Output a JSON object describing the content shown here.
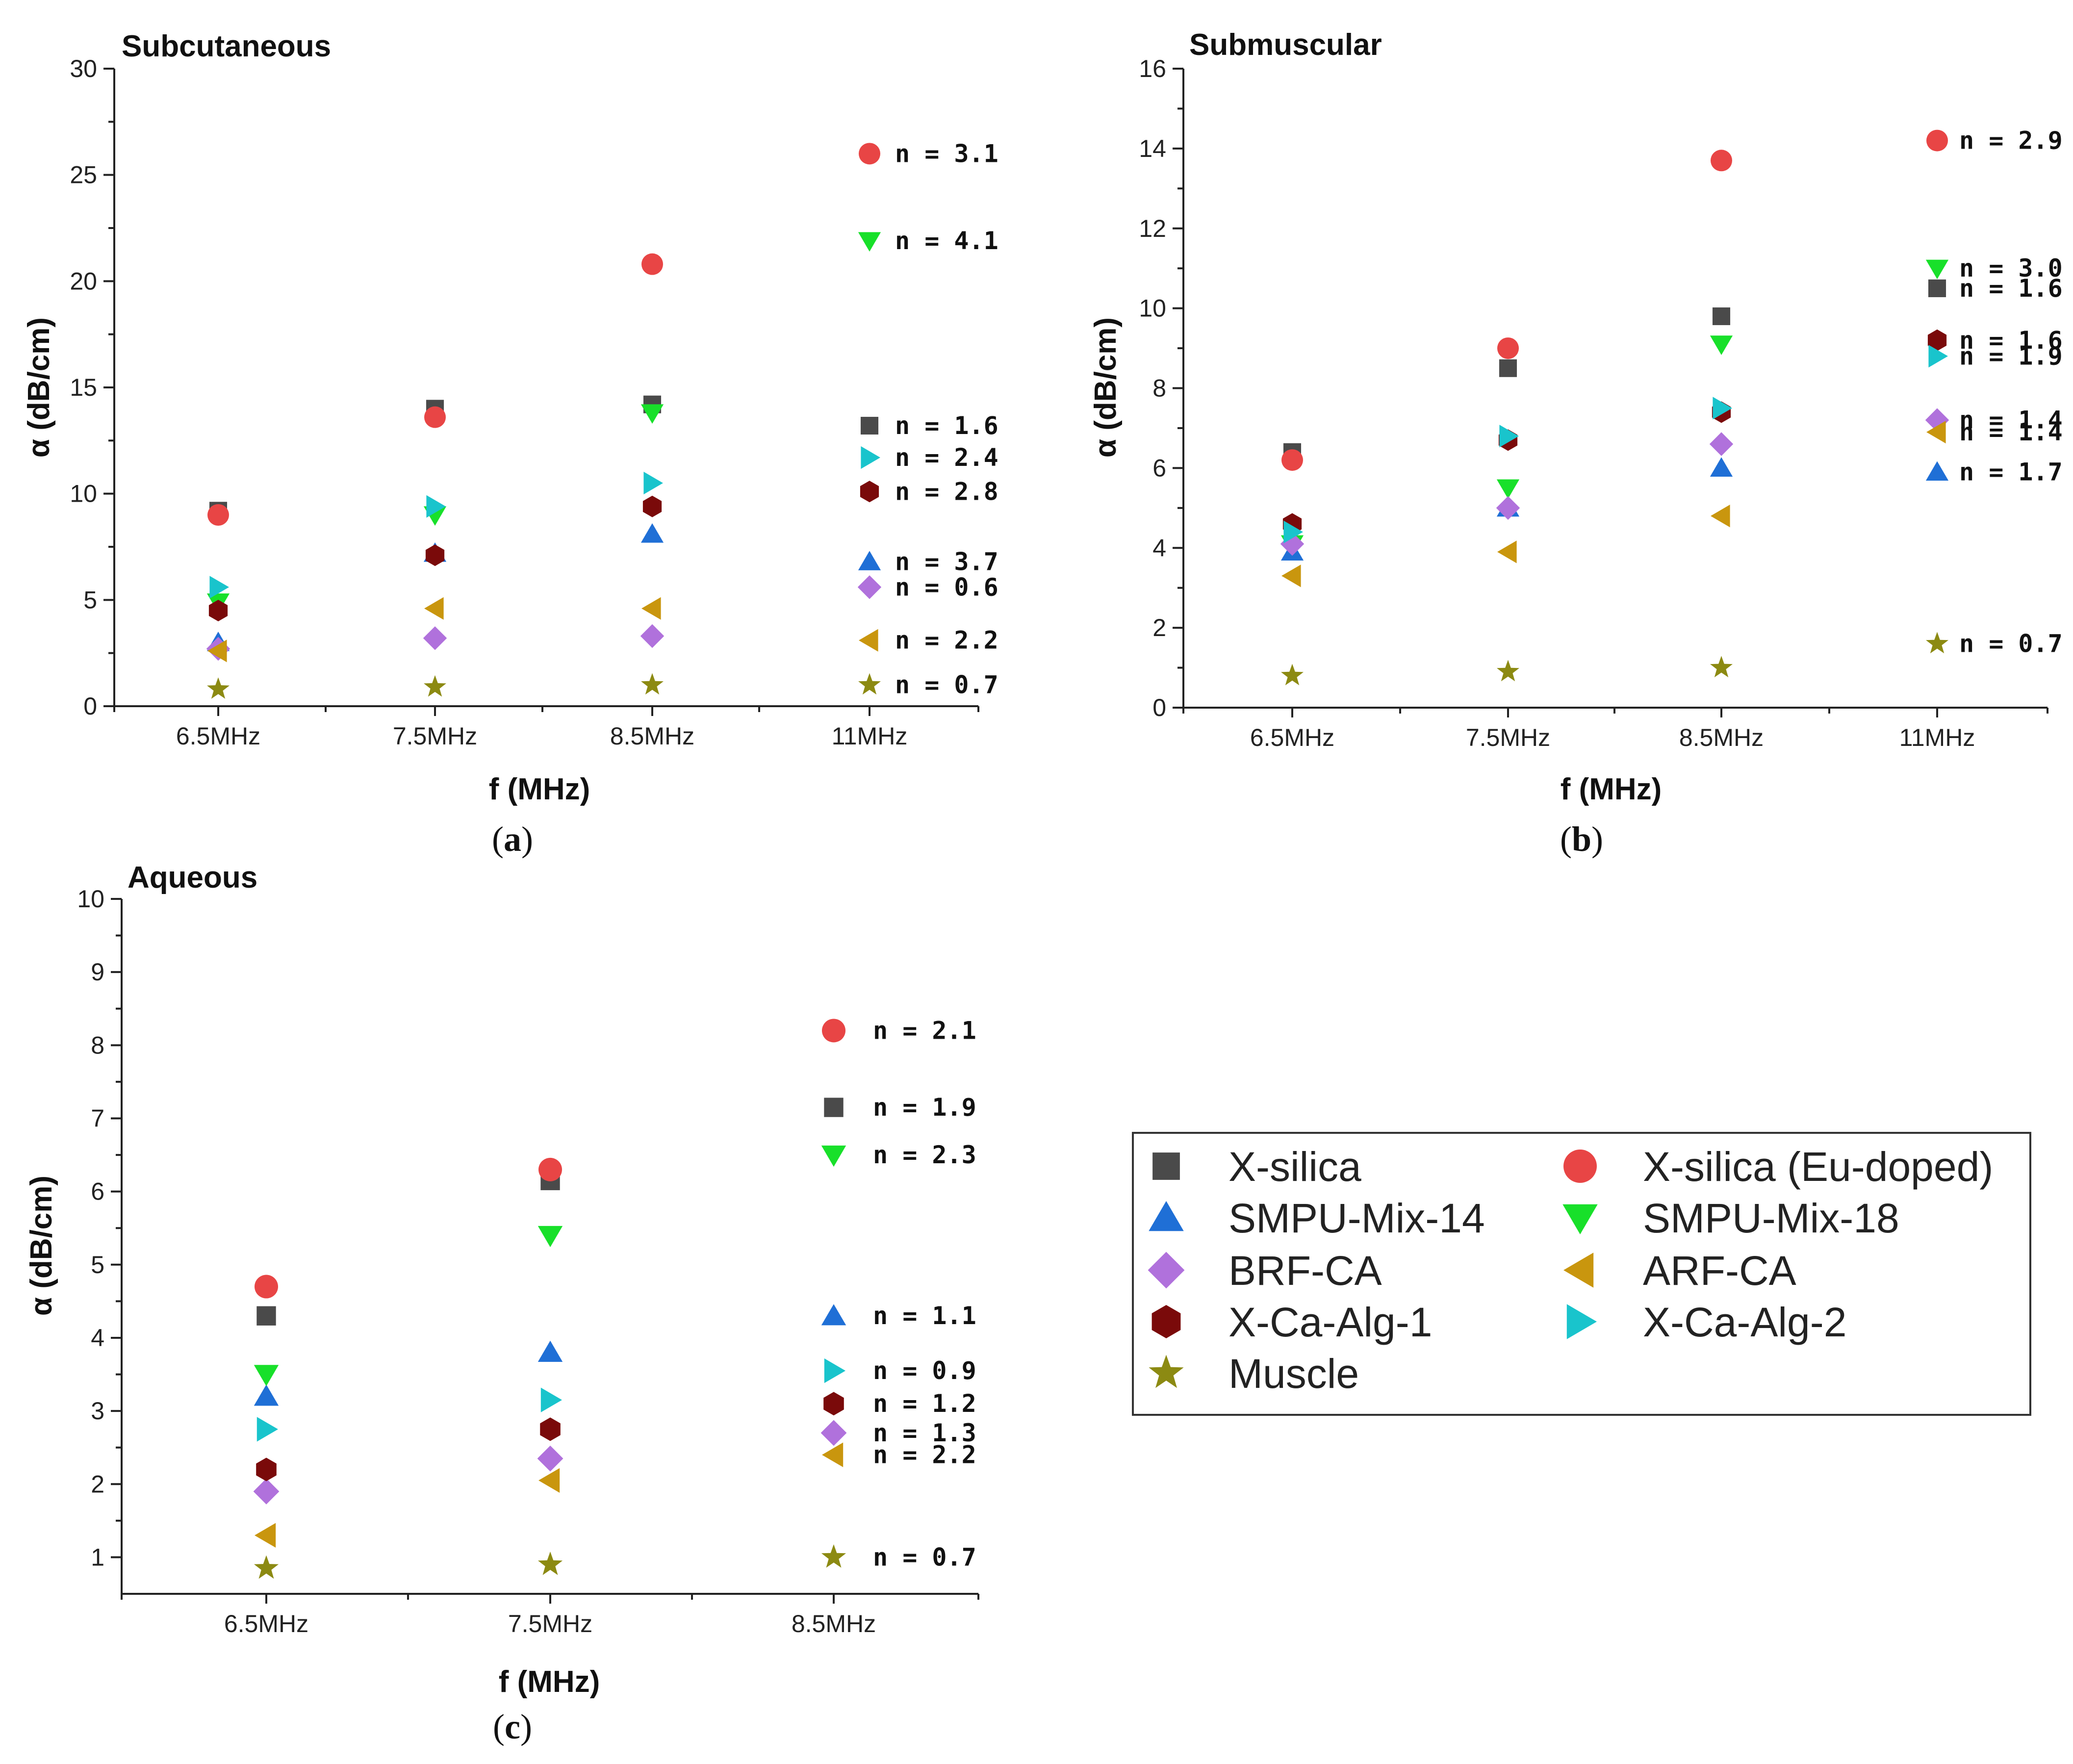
{
  "colors": {
    "X-silica": "#4a4a4a",
    "X-silica (Eu-doped)": "#e84545",
    "SMPU-Mix-14": "#1f6fd6",
    "SMPU-Mix-18": "#18e02a",
    "BRF-CA": "#b071dc",
    "ARF-CA": "#c9960e",
    "X-Ca-Alg-1": "#7a0a0a",
    "X-Ca-Alg-2": "#19c4cc",
    "Muscle": "#8c8a12"
  },
  "markers": {
    "X-silica": "square",
    "X-silica (Eu-doped)": "circle",
    "SMPU-Mix-14": "triangle-up",
    "SMPU-Mix-18": "triangle-down",
    "BRF-CA": "diamond",
    "ARF-CA": "triangle-left",
    "X-Ca-Alg-1": "hexagon",
    "X-Ca-Alg-2": "triangle-right",
    "Muscle": "star"
  },
  "legend": {
    "items": [
      "X-silica",
      "X-silica (Eu-doped)",
      "SMPU-Mix-14",
      "SMPU-Mix-18",
      "BRF-CA",
      "ARF-CA",
      "X-Ca-Alg-1",
      "X-Ca-Alg-2",
      "Muscle"
    ]
  },
  "chart_data": [
    {
      "id": "a",
      "panel_label_letter": "a",
      "type": "scatter",
      "title": "Subcutaneous",
      "xlabel": "f (MHz)",
      "ylabel": "α (dB/cm)",
      "categories": [
        "6.5MHz",
        "7.5MHz",
        "8.5MHz",
        "11MHz"
      ],
      "ylim": [
        0,
        30
      ],
      "yticks": [
        0,
        5,
        10,
        15,
        20,
        25,
        30
      ],
      "series": [
        {
          "name": "X-silica",
          "values": [
            9.2,
            14.0,
            14.2
          ],
          "n_label": "n = 1.6",
          "label_value": 13.2
        },
        {
          "name": "X-silica (Eu-doped)",
          "values": [
            9.0,
            13.6,
            20.8
          ],
          "n_label": "n = 3.1",
          "label_value": 26.0
        },
        {
          "name": "SMPU-Mix-14",
          "values": [
            3.0,
            7.2,
            8.1
          ],
          "n_label": "n = 3.7",
          "label_value": 6.8
        },
        {
          "name": "SMPU-Mix-18",
          "values": [
            4.9,
            9.0,
            13.8
          ],
          "n_label": "n = 4.1",
          "label_value": 21.9
        },
        {
          "name": "BRF-CA",
          "values": [
            2.7,
            3.2,
            3.3
          ],
          "n_label": "n = 0.6",
          "label_value": 5.6
        },
        {
          "name": "ARF-CA",
          "values": [
            2.6,
            4.6,
            4.6
          ],
          "n_label": "n = 2.2",
          "label_value": 3.1
        },
        {
          "name": "X-Ca-Alg-1",
          "values": [
            4.5,
            7.1,
            9.4
          ],
          "n_label": "n = 2.8",
          "label_value": 10.1
        },
        {
          "name": "X-Ca-Alg-2",
          "values": [
            5.6,
            9.4,
            10.5
          ],
          "n_label": "n = 2.4",
          "label_value": 11.7
        },
        {
          "name": "Muscle",
          "values": [
            0.8,
            0.9,
            1.0
          ],
          "n_label": "n = 0.7",
          "label_value": 1.0
        }
      ]
    },
    {
      "id": "b",
      "panel_label_letter": "b",
      "type": "scatter",
      "title": "Submuscular",
      "xlabel": "f (MHz)",
      "ylabel": "α (dB/cm)",
      "categories": [
        "6.5MHz",
        "7.5MHz",
        "8.5MHz",
        "11MHz"
      ],
      "ylim": [
        0,
        16
      ],
      "yticks": [
        0,
        2,
        4,
        6,
        8,
        10,
        12,
        14,
        16
      ],
      "series": [
        {
          "name": "X-silica",
          "values": [
            6.4,
            8.5,
            9.8
          ],
          "n_label": "n = 1.6",
          "label_value": 10.5
        },
        {
          "name": "X-silica (Eu-doped)",
          "values": [
            6.2,
            9.0,
            13.7
          ],
          "n_label": "n = 2.9",
          "label_value": 14.2
        },
        {
          "name": "SMPU-Mix-14",
          "values": [
            3.9,
            5.0,
            6.0
          ],
          "n_label": "n = 1.7",
          "label_value": 5.9
        },
        {
          "name": "SMPU-Mix-18",
          "values": [
            4.1,
            5.5,
            9.1
          ],
          "n_label": "n = 3.0",
          "label_value": 11.0
        },
        {
          "name": "BRF-CA",
          "values": [
            4.1,
            5.0,
            6.6
          ],
          "n_label": "n = 1.4",
          "label_value": 7.2
        },
        {
          "name": "ARF-CA",
          "values": [
            3.3,
            3.9,
            4.8
          ],
          "n_label": "n = 1.4",
          "label_value": 6.9
        },
        {
          "name": "X-Ca-Alg-1",
          "values": [
            4.6,
            6.7,
            7.4
          ],
          "n_label": "n = 1.6",
          "label_value": 9.2
        },
        {
          "name": "X-Ca-Alg-2",
          "values": [
            4.4,
            6.8,
            7.5
          ],
          "n_label": "n = 1.9",
          "label_value": 8.8
        },
        {
          "name": "Muscle",
          "values": [
            0.8,
            0.9,
            1.0
          ],
          "n_label": "n = 0.7",
          "label_value": 1.6
        }
      ]
    },
    {
      "id": "c",
      "panel_label_letter": "c",
      "type": "scatter",
      "title": "Aqueous",
      "xlabel": "f (MHz)",
      "ylabel": "α (dB/cm)",
      "categories": [
        "6.5MHz",
        "7.5MHz",
        "8.5MHz"
      ],
      "ylim": [
        0.5,
        10
      ],
      "yticks": [
        1,
        2,
        3,
        4,
        5,
        6,
        7,
        8,
        9,
        10
      ],
      "series": [
        {
          "name": "X-silica",
          "values": [
            4.3,
            6.15
          ],
          "n_label": "n = 1.9",
          "label_value": 7.15
        },
        {
          "name": "X-silica (Eu-doped)",
          "values": [
            4.7,
            6.3
          ],
          "n_label": "n = 2.1",
          "label_value": 8.2
        },
        {
          "name": "SMPU-Mix-14",
          "values": [
            3.2,
            3.8
          ],
          "n_label": "n = 1.1",
          "label_value": 4.3
        },
        {
          "name": "SMPU-Mix-18",
          "values": [
            3.5,
            5.4
          ],
          "n_label": "n = 2.3",
          "label_value": 6.5
        },
        {
          "name": "BRF-CA",
          "values": [
            1.9,
            2.35
          ],
          "n_label": "n = 1.3",
          "label_value": 2.7
        },
        {
          "name": "ARF-CA",
          "values": [
            1.3,
            2.05
          ],
          "n_label": "n = 2.2",
          "label_value": 2.4
        },
        {
          "name": "X-Ca-Alg-1",
          "values": [
            2.2,
            2.75
          ],
          "n_label": "n = 1.2",
          "label_value": 3.1
        },
        {
          "name": "X-Ca-Alg-2",
          "values": [
            2.75,
            3.15
          ],
          "n_label": "n = 0.9",
          "label_value": 3.55
        },
        {
          "name": "Muscle",
          "values": [
            0.85,
            0.9
          ],
          "n_label": "n = 0.7",
          "label_value": 1.0
        }
      ]
    }
  ]
}
